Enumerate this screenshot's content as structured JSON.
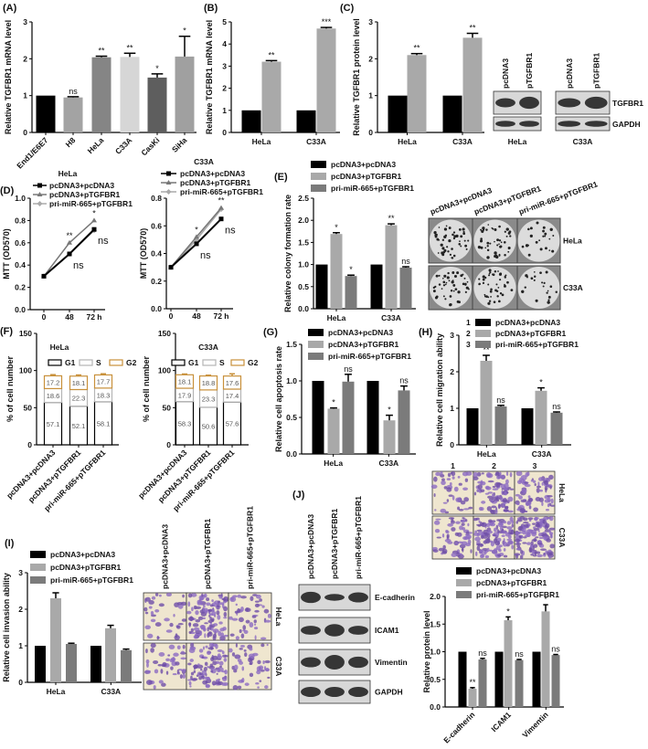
{
  "panel_labels": {
    "A": "(A)",
    "B": "(B)",
    "C": "(C)",
    "D": "(D)",
    "E": "(E)",
    "F": "(F)",
    "G": "(G)",
    "H": "(H)",
    "I": "(I)",
    "J": "(J)"
  },
  "colors": {
    "black": "#000000",
    "light_gray": "#a9a9a9",
    "dark_gray": "#7b7b7b",
    "g1": "#000000",
    "s": "#b5b5b5",
    "g2": "#c8903a"
  },
  "chart_data": [
    {
      "id": "A",
      "type": "bar",
      "ylabel": "Relative TGFBR1 mRNA level",
      "ylim": [
        0,
        3
      ],
      "ytick_labels": [
        "0",
        "1",
        "2",
        "3"
      ],
      "categories": [
        "End1/E6E7",
        "H8",
        "HeLa",
        "C33A",
        "CasKi",
        "SiHa"
      ],
      "series": [
        {
          "values": [
            1.0,
            0.95,
            2.04,
            2.05,
            1.49,
            2.06
          ],
          "errors": [
            0,
            0.02,
            0.03,
            0.1,
            0.1,
            0.55
          ],
          "significance": [
            "",
            "ns",
            "**",
            "**",
            "*",
            "*"
          ],
          "colors": [
            "#000000",
            "#a3a3a3",
            "#858585",
            "#d6d6d6",
            "#5e5e5e",
            "#a0a0a0"
          ]
        }
      ]
    },
    {
      "id": "B",
      "type": "bar",
      "ylabel": "Relative TGFBR1 mRNA level",
      "ylim": [
        0,
        5
      ],
      "ytick_labels": [
        "0",
        "1",
        "2",
        "3",
        "4",
        "5"
      ],
      "categories": [
        "HeLa",
        "C33A"
      ],
      "series": [
        {
          "values": [
            1,
            1
          ],
          "errors": [
            0,
            0
          ],
          "significance": [
            "",
            ""
          ],
          "color": "#000000"
        },
        {
          "values": [
            3.2,
            4.7
          ],
          "errors": [
            0.05,
            0.05
          ],
          "significance": [
            "**",
            "***"
          ],
          "color": "#a9a9a9"
        }
      ]
    },
    {
      "id": "C",
      "type": "bar",
      "ylabel": "Relative TGFBR1 protein level",
      "ylim": [
        0,
        3
      ],
      "ytick_labels": [
        "0",
        "1",
        "2",
        "3"
      ],
      "categories": [
        "HeLa",
        "C33A"
      ],
      "series": [
        {
          "values": [
            1,
            1
          ],
          "errors": [
            0,
            0
          ],
          "significance": [
            "",
            ""
          ],
          "color": "#000000"
        },
        {
          "values": [
            2.1,
            2.57
          ],
          "errors": [
            0.04,
            0.12
          ],
          "significance": [
            "**",
            "**"
          ],
          "color": "#a9a9a9"
        }
      ]
    },
    {
      "id": "D-HeLa",
      "type": "line",
      "title": "HeLa",
      "ylabel": "MTT (OD570)",
      "ylim": [
        0,
        1.0
      ],
      "ytick_labels": [
        "0.0",
        "0.2",
        "0.4",
        "0.6",
        "0.8",
        "1.0"
      ],
      "x": [
        "0",
        "48",
        "72 h"
      ],
      "series": [
        {
          "name": "pcDNA3+pcDNA3",
          "values": [
            0.3,
            0.5,
            0.72
          ],
          "color": "#000000",
          "marker": "square"
        },
        {
          "name": "pcDNA3+pTGFBR1",
          "values": [
            0.3,
            0.6,
            0.8
          ],
          "color": "#777777",
          "marker": "triangle"
        },
        {
          "name": "pri-miR-665+pTGFBR1",
          "values": [
            0.3,
            0.5,
            0.71
          ],
          "color": "#aaaaaa",
          "marker": "diamond"
        }
      ],
      "annotations": [
        {
          "x": 1,
          "series": 1,
          "text": "**"
        },
        {
          "x": 2,
          "series": 1,
          "text": "*"
        },
        {
          "x": 1,
          "series": 0,
          "text": "ns",
          "below": true
        },
        {
          "x": 2,
          "series": 0,
          "text": "ns",
          "below": true
        }
      ]
    },
    {
      "id": "D-C33A",
      "type": "line",
      "title": "C33A",
      "ylabel": "MTT (OD570)",
      "ylim": [
        0,
        0.8
      ],
      "ytick_labels": [
        "0.0",
        "0.2",
        "0.4",
        "0.6",
        "0.8"
      ],
      "x": [
        "0",
        "48",
        "72 h"
      ],
      "series": [
        {
          "name": "pcDNA3+pcDNA3",
          "values": [
            0.3,
            0.47,
            0.65
          ],
          "color": "#000000",
          "marker": "square"
        },
        {
          "name": "pcDNA3+pTGFBR1",
          "values": [
            0.3,
            0.52,
            0.73
          ],
          "color": "#777777",
          "marker": "triangle"
        },
        {
          "name": "pri-miR-665+pTGFBR1",
          "values": [
            0.3,
            0.5,
            0.72
          ],
          "color": "#aaaaaa",
          "marker": "diamond"
        }
      ],
      "annotations": [
        {
          "x": 1,
          "series": 1,
          "text": "*"
        },
        {
          "x": 2,
          "series": 1,
          "text": "**"
        },
        {
          "x": 1,
          "series": 0,
          "text": "ns",
          "below": true
        },
        {
          "x": 2,
          "series": 0,
          "text": "ns",
          "below": true
        }
      ]
    },
    {
      "id": "E",
      "type": "bar",
      "ylabel": "Relative colony formation rate",
      "ylim": [
        0,
        2.5
      ],
      "ytick_labels": [
        "0.0",
        "0.5",
        "1.0",
        "1.5",
        "2.0",
        "2.5"
      ],
      "categories": [
        "HeLa",
        "C33A"
      ],
      "legend": true,
      "series": [
        {
          "name": "pcDNA3+pcDNA3",
          "values": [
            1,
            1
          ],
          "errors": [
            0,
            0
          ],
          "significance": [
            "",
            ""
          ],
          "color": "#000000"
        },
        {
          "name": "pcDNA3+pTGFBR1",
          "values": [
            1.69,
            1.89
          ],
          "errors": [
            0.03,
            0.03
          ],
          "significance": [
            "*",
            "**"
          ],
          "color": "#a9a9a9"
        },
        {
          "name": "pri-miR-665+pTGFBR1",
          "values": [
            0.74,
            0.93
          ],
          "errors": [
            0.02,
            0.02
          ],
          "significance": [
            "*",
            "ns"
          ],
          "color": "#7b7b7b"
        }
      ]
    },
    {
      "id": "F-HeLa",
      "type": "stacked_bar",
      "title": "HeLa",
      "ylabel": "% of cell number",
      "ylim": [
        0,
        150
      ],
      "ytick_labels": [
        "0",
        "50",
        "100",
        "150"
      ],
      "categories": [
        "pcDNA3+pcDNA3",
        "pcDNA3+pTGFBR1",
        "pri-miR-665+pTGFBR1"
      ],
      "segments": [
        {
          "name": "G1",
          "values": [
            57.1,
            52.1,
            58.1
          ],
          "errors": [
            1.5,
            3.5,
            2.5
          ],
          "color": "#000000"
        },
        {
          "name": "S",
          "values": [
            18.6,
            22.3,
            18.3
          ],
          "errors": [
            2.5,
            4,
            1.5
          ],
          "color": "#b5b5b5"
        },
        {
          "name": "G2",
          "values": [
            17.2,
            18.1,
            17.7
          ],
          "errors": [
            1.5,
            1.5,
            1.5
          ],
          "color": "#c8903a"
        }
      ]
    },
    {
      "id": "F-C33A",
      "type": "stacked_bar",
      "title": "C33A",
      "ylabel": "% of cell number",
      "ylim": [
        0,
        150
      ],
      "ytick_labels": [
        "0",
        "50",
        "100",
        "150"
      ],
      "categories": [
        "pcDNA3+pcDNA3",
        "pcDNA3+pTGFBR1",
        "pri-miR-665+pTGFBR1"
      ],
      "segments": [
        {
          "name": "G1",
          "values": [
            58.3,
            50.6,
            57.6
          ],
          "errors": [
            1,
            2.5,
            2.5
          ],
          "color": "#000000"
        },
        {
          "name": "S",
          "values": [
            17.9,
            23.3,
            17.4
          ],
          "errors": [
            4,
            1.5,
            2.5
          ],
          "color": "#b5b5b5"
        },
        {
          "name": "G2",
          "values": [
            18.1,
            18.8,
            17.6
          ],
          "errors": [
            1,
            1,
            3
          ],
          "color": "#c8903a"
        }
      ]
    },
    {
      "id": "G",
      "type": "bar",
      "ylabel": "Relative cell apoptosis rate",
      "ylim": [
        0,
        1.5
      ],
      "ytick_labels": [
        "0.0",
        "0.5",
        "1.0",
        "1.5"
      ],
      "categories": [
        "HeLa",
        "C33A"
      ],
      "legend": true,
      "series": [
        {
          "name": "pcDNA3+pcDNA3",
          "values": [
            1,
            1
          ],
          "errors": [
            0,
            0
          ],
          "significance": [
            "",
            ""
          ],
          "color": "#000000"
        },
        {
          "name": "pcDNA3+pTGFBR1",
          "values": [
            0.62,
            0.46
          ],
          "errors": [
            0.01,
            0.07
          ],
          "significance": [
            "*",
            "*"
          ],
          "color": "#a9a9a9"
        },
        {
          "name": "pri-miR-665+pTGFBR1",
          "values": [
            0.99,
            0.87
          ],
          "errors": [
            0.1,
            0.06
          ],
          "significance": [
            "ns",
            "ns"
          ],
          "color": "#7b7b7b"
        }
      ]
    },
    {
      "id": "H",
      "type": "bar",
      "ylabel": "Relative cell migration ability",
      "ylim": [
        0,
        3
      ],
      "ytick_labels": [
        "0",
        "1",
        "2",
        "3"
      ],
      "categories": [
        "HeLa",
        "C33A"
      ],
      "legend": true,
      "series": [
        {
          "name": "pcDNA3+pcDNA3",
          "legend_number": "1",
          "values": [
            1,
            1
          ],
          "errors": [
            0,
            0
          ],
          "significance": [
            "",
            ""
          ],
          "color": "#000000"
        },
        {
          "name": "pcDNA3+pTGFBR1",
          "legend_number": "2",
          "values": [
            2.3,
            1.48
          ],
          "errors": [
            0.15,
            0.08
          ],
          "significance": [
            "**",
            "*"
          ],
          "color": "#a9a9a9"
        },
        {
          "name": "pri-miR-665+pTGFBR1",
          "legend_number": "3",
          "values": [
            1.05,
            0.88
          ],
          "errors": [
            0.03,
            0.02
          ],
          "significance": [
            "ns",
            "ns"
          ],
          "color": "#7b7b7b"
        }
      ]
    },
    {
      "id": "I",
      "type": "bar",
      "ylabel": "Relative cell invasion ability",
      "ylim": [
        0,
        3
      ],
      "ytick_labels": [
        "0",
        "1",
        "2",
        "3"
      ],
      "categories": [
        "HeLa",
        "C33A"
      ],
      "legend": true,
      "series": [
        {
          "name": "pcDNA3+pcDNA3",
          "values": [
            1,
            1
          ],
          "errors": [
            0,
            0
          ],
          "significance": [
            "",
            ""
          ],
          "color": "#000000"
        },
        {
          "name": "pcDNA3+pTGFBR1",
          "values": [
            2.3,
            1.48
          ],
          "errors": [
            0.15,
            0.08
          ],
          "significance": [
            "",
            ""
          ],
          "color": "#a9a9a9"
        },
        {
          "name": "pri-miR-665+pTGFBR1",
          "values": [
            1.05,
            0.88
          ],
          "errors": [
            0.02,
            0.03
          ],
          "significance": [
            "",
            ""
          ],
          "color": "#7b7b7b"
        }
      ]
    },
    {
      "id": "J",
      "type": "bar",
      "ylabel": "Relative protein level",
      "ylim": [
        0,
        2.0
      ],
      "ytick_labels": [
        "0.0",
        "0.5",
        "1.0",
        "1.5",
        "2.0"
      ],
      "categories": [
        "E-cadherin",
        "ICAM1",
        "Vimentin"
      ],
      "legend": true,
      "series": [
        {
          "name": "pcDNA3+pcDNA3",
          "values": [
            1,
            1,
            1
          ],
          "errors": [
            0,
            0,
            0
          ],
          "significance": [
            "",
            "",
            ""
          ],
          "color": "#000000"
        },
        {
          "name": "pcDNA3+pTGFBR1",
          "values": [
            0.33,
            1.57,
            1.73
          ],
          "errors": [
            0.02,
            0.06,
            0.12
          ],
          "significance": [
            "**",
            "*",
            "*"
          ],
          "color": "#a9a9a9"
        },
        {
          "name": "pri-miR-665+pTGFBR1",
          "values": [
            0.86,
            0.85,
            0.94
          ],
          "errors": [
            0.02,
            0.01,
            0.01
          ],
          "significance": [
            "ns",
            "ns",
            "ns"
          ],
          "color": "#7b7b7b"
        }
      ]
    }
  ],
  "blot_C": {
    "lanes": [
      "pcDNA3",
      "pTGFBR1"
    ],
    "rows": [
      "TGFBR1",
      "GAPDH"
    ],
    "cells": [
      "HeLa",
      "C33A"
    ]
  },
  "colony_E": {
    "columns": [
      "pcDNA3+pcDNA3",
      "pcDNA3+pTGFBR1",
      "pri-miR-665+pTGFBR1"
    ],
    "rows": [
      "HeLa",
      "C33A"
    ]
  },
  "migration_H": {
    "columns": [
      "1",
      "2",
      "3"
    ],
    "rows": [
      "HeLa",
      "C33A"
    ]
  },
  "invasion_I": {
    "columns": [
      "pcDNA3+pcDNA3",
      "pcDNA3+pTGFBR1",
      "pri-miR-665+pTGFBR1"
    ],
    "rows": [
      "HeLa",
      "C33A"
    ]
  },
  "blot_J": {
    "lanes": [
      "pcDNA3+pcDNA3",
      "pcDNA3+pTGFBR1",
      "pri-miR-665+pTGFBR1"
    ],
    "rows": [
      "E-cadherin",
      "ICAM1",
      "Vimentin",
      "GAPDH"
    ]
  }
}
